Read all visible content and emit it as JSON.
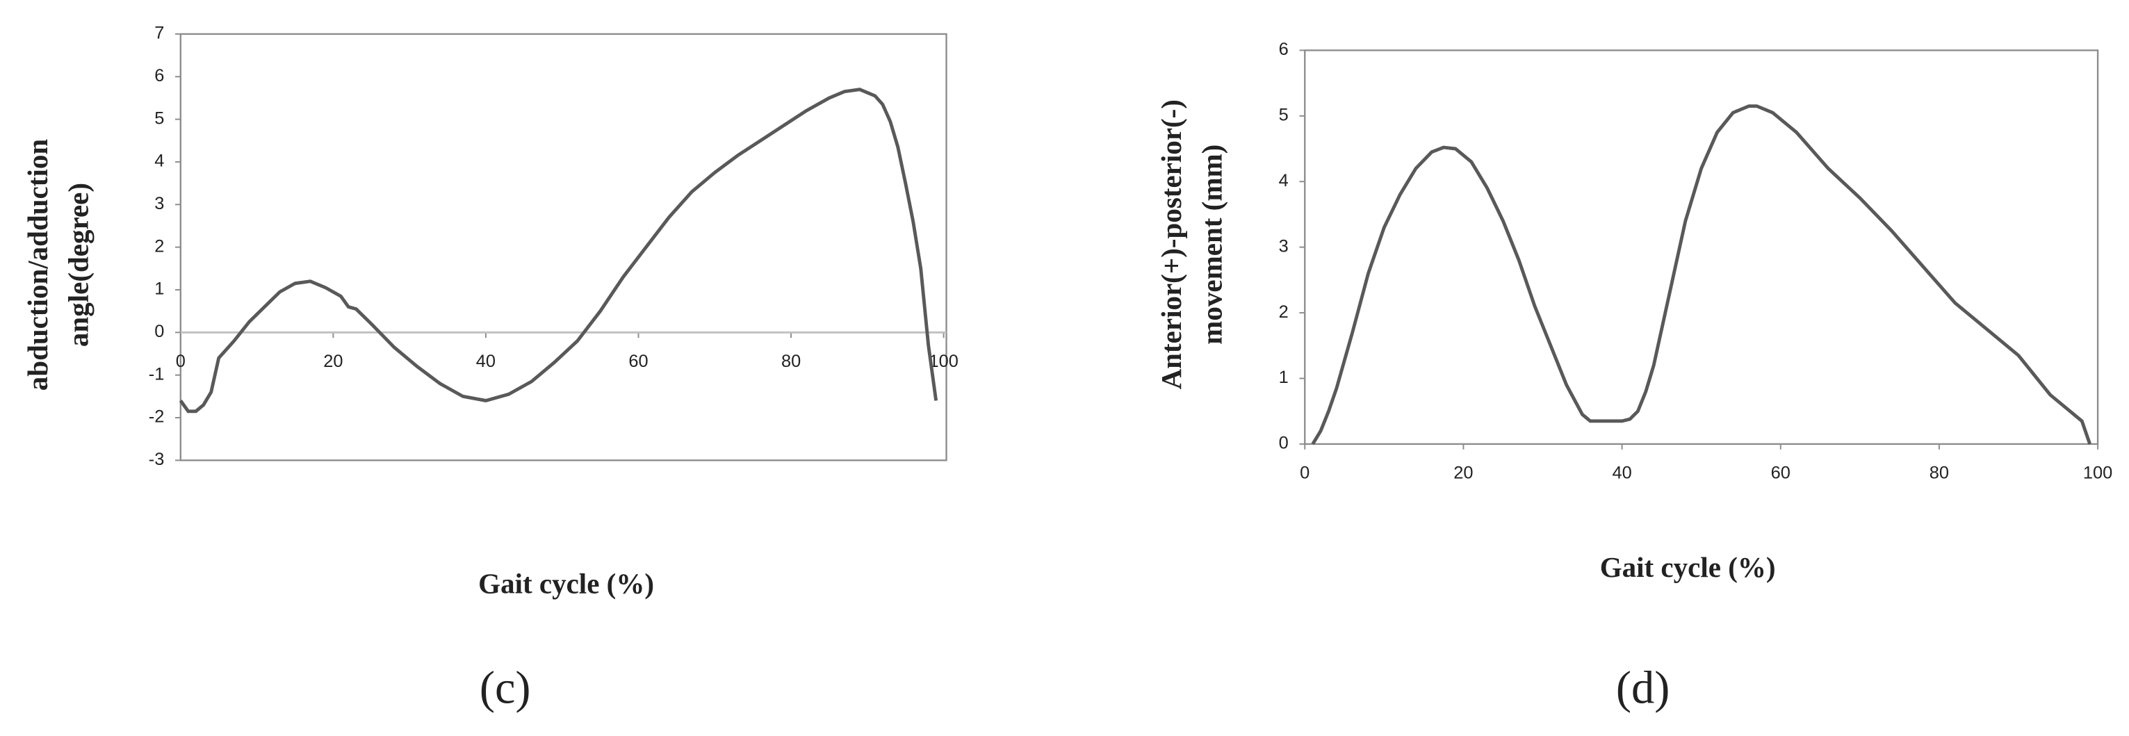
{
  "chart_data": [
    {
      "type": "line",
      "panel": "(c)",
      "y_label": [
        "abduction/adduction",
        "angle(degree)"
      ],
      "x_label": "Gait cycle (%)",
      "xlim": [
        0,
        100
      ],
      "xticks": [
        0,
        20,
        40,
        60,
        80,
        100
      ],
      "ylim": [
        -3,
        7
      ],
      "yticks": [
        -3,
        -2,
        -1,
        0,
        1,
        2,
        3,
        4,
        5,
        6,
        7
      ],
      "zero_line": true,
      "color": "#595959",
      "x": [
        0,
        1,
        2,
        3,
        4,
        5,
        7,
        9,
        11,
        13,
        15,
        17,
        19,
        21,
        22,
        23,
        25,
        28,
        31,
        34,
        37,
        40,
        43,
        46,
        49,
        52,
        55,
        58,
        61,
        64,
        67,
        70,
        73,
        76,
        79,
        82,
        85,
        87,
        89,
        91,
        92,
        93,
        94,
        95,
        96,
        97,
        98,
        99
      ],
      "values": [
        -1.6,
        -1.85,
        -1.85,
        -1.7,
        -1.4,
        -0.6,
        -0.2,
        0.25,
        0.6,
        0.95,
        1.15,
        1.2,
        1.05,
        0.85,
        0.6,
        0.55,
        0.2,
        -0.35,
        -0.8,
        -1.2,
        -1.5,
        -1.6,
        -1.45,
        -1.15,
        -0.7,
        -0.2,
        0.5,
        1.3,
        2.0,
        2.7,
        3.3,
        3.75,
        4.15,
        4.5,
        4.85,
        5.2,
        5.5,
        5.65,
        5.7,
        5.55,
        5.35,
        4.95,
        4.35,
        3.5,
        2.6,
        1.5,
        -0.3,
        -1.6
      ]
    },
    {
      "type": "line",
      "panel": "(d)",
      "y_label": [
        "Anterior(+)-posterior(-)",
        "movement (mm)"
      ],
      "x_label": "Gait cycle (%)",
      "xlim": [
        0,
        100
      ],
      "xticks": [
        0,
        20,
        40,
        60,
        80,
        100
      ],
      "ylim": [
        0,
        6
      ],
      "yticks": [
        0,
        1,
        2,
        3,
        4,
        5,
        6
      ],
      "zero_line": false,
      "color": "#595959",
      "x": [
        1,
        2,
        3,
        4,
        6,
        8,
        10,
        12,
        14,
        16,
        17.5,
        19,
        21,
        23,
        25,
        27,
        29,
        31,
        33,
        35,
        36,
        38,
        40,
        41,
        42,
        43,
        44,
        46,
        48,
        50,
        52,
        54,
        56,
        57,
        59,
        62,
        66,
        70,
        74,
        78,
        82,
        86,
        90,
        94,
        98,
        99
      ],
      "values": [
        0,
        0.2,
        0.5,
        0.85,
        1.7,
        2.6,
        3.3,
        3.8,
        4.2,
        4.45,
        4.52,
        4.5,
        4.3,
        3.9,
        3.4,
        2.8,
        2.1,
        1.5,
        0.9,
        0.45,
        0.35,
        0.35,
        0.35,
        0.38,
        0.5,
        0.8,
        1.2,
        2.3,
        3.4,
        4.2,
        4.75,
        5.05,
        5.15,
        5.15,
        5.05,
        4.75,
        4.2,
        3.75,
        3.25,
        2.7,
        2.15,
        1.75,
        1.35,
        0.75,
        0.35,
        0
      ]
    }
  ]
}
